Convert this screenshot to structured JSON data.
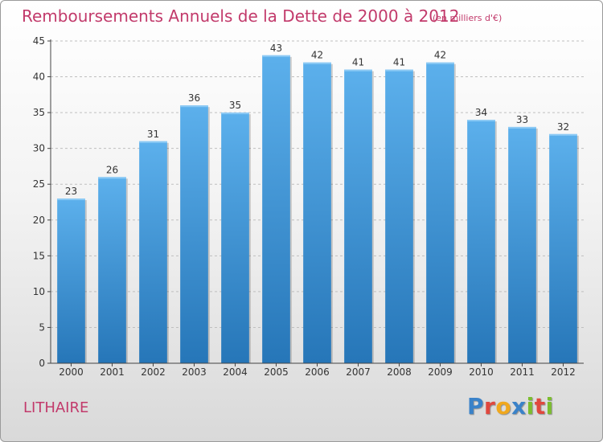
{
  "title": "Remboursements Annuels de la Dette de 2000 à 2012",
  "subtitle": "(en milliers d'€)",
  "commune": "LITHAIRE",
  "logo": {
    "text": "Proxiti",
    "letter_colors": [
      "#3a82c9",
      "#e0483e",
      "#f0a81e",
      "#3a82c9",
      "#7cbd2f",
      "#e0483e",
      "#7cbd2f"
    ]
  },
  "colors": {
    "bar_top": "#5cb0ec",
    "bar_bottom": "#2676b8",
    "title": "#c23a6b",
    "axis": "#444444",
    "grid": "#bfbfbf"
  },
  "chart_data": {
    "type": "bar",
    "categories": [
      "2000",
      "2001",
      "2002",
      "2003",
      "2004",
      "2005",
      "2006",
      "2007",
      "2008",
      "2009",
      "2010",
      "2011",
      "2012"
    ],
    "values": [
      23,
      26,
      31,
      36,
      35,
      43,
      42,
      41,
      41,
      42,
      34,
      33,
      32
    ],
    "title": "Remboursements Annuels de la Dette de 2000 à 2012",
    "subtitle": "(en milliers d'€)",
    "xlabel": "",
    "ylabel": "",
    "ylim": [
      0,
      45
    ],
    "yticks": [
      0,
      5,
      10,
      15,
      20,
      25,
      30,
      35,
      40,
      45
    ],
    "grid": true,
    "data_labels": true,
    "legend": "none"
  }
}
